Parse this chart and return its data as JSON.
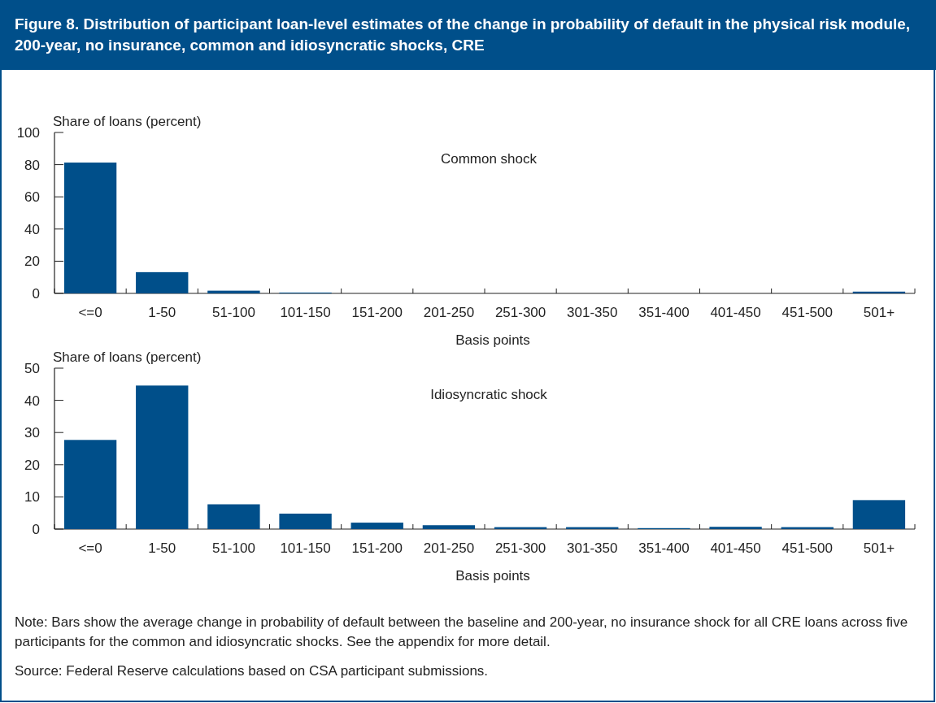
{
  "chart_data": [
    {
      "type": "bar",
      "title": "Figure 8. Distribution of participant loan-level estimates of the change in probability of default in the physical risk module, 200-year, no insurance, common and idiosyncratic shocks, CRE",
      "subtitle": "Common shock",
      "ylabel": "Share of loans (percent)",
      "xlabel": "Basis points",
      "categories": [
        "<=0",
        "1-50",
        "51-100",
        "101-150",
        "151-200",
        "201-250",
        "251-300",
        "301-350",
        "351-400",
        "401-450",
        "451-500",
        "501+"
      ],
      "values": [
        81.3,
        13.2,
        1.7,
        0.5,
        0,
        0,
        0,
        0,
        0,
        0,
        0,
        1.1
      ],
      "color": "#004f8a",
      "ylim": [
        0,
        100
      ],
      "yticks": [
        0,
        20,
        40,
        60,
        80,
        100
      ]
    },
    {
      "type": "bar",
      "subtitle": "Idiosyncratic shock",
      "ylabel": "Share of loans (percent)",
      "xlabel": "Basis points",
      "categories": [
        "<=0",
        "1-50",
        "51-100",
        "101-150",
        "151-200",
        "201-250",
        "251-300",
        "301-350",
        "351-400",
        "401-450",
        "451-500",
        "501+"
      ],
      "values": [
        27.7,
        44.6,
        7.7,
        4.8,
        2.0,
        1.2,
        0.6,
        0.6,
        0.3,
        0.7,
        0.6,
        9.0
      ],
      "color": "#004f8a",
      "ylim": [
        0,
        50
      ],
      "yticks": [
        0,
        10,
        20,
        30,
        40,
        50
      ],
      "annotations": [
        "Note: Bars show the average change in probability of default between the baseline and 200-year, no insurance shock for all CRE loans across five participants for the common and idiosyncratic shocks. See the appendix for more detail.",
        "Source: Federal Reserve calculations based on CSA participant submissions."
      ]
    }
  ]
}
